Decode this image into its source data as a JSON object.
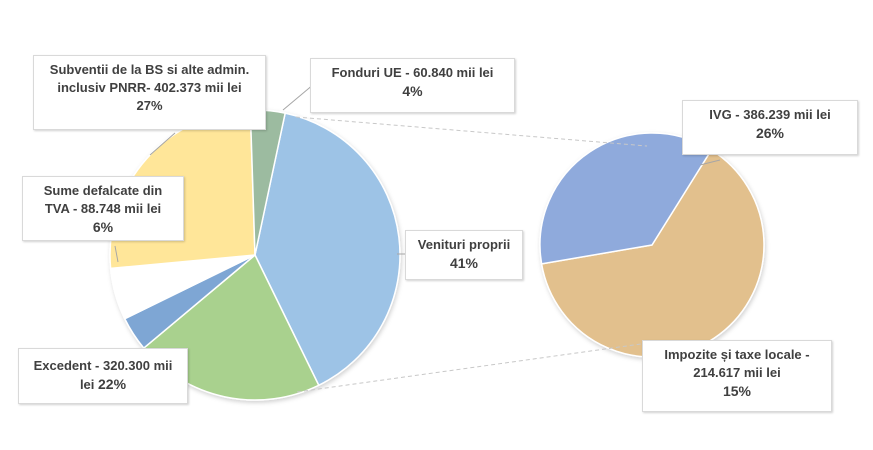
{
  "chart_data": {
    "type": "pie",
    "subtype": "pie-of-pie",
    "main_slices": [
      {
        "label": "Venituri proprii",
        "percent": 41,
        "color": "#9dc3e6"
      },
      {
        "label": "Excedent - 320.300 mii lei",
        "value_mii_lei": 320300,
        "percent": 22,
        "color": "#a9d18e"
      },
      {
        "label": "",
        "percent": 4,
        "color": "#7ea6d4"
      },
      {
        "label": "Sume defalcate din TVA - 88.748 mii lei",
        "value_mii_lei": 88748,
        "percent": 6,
        "color": "#ffffff"
      },
      {
        "label": "Subventii de la BS si alte admin. inclusiv PNRR- 402.373 mii lei",
        "value_mii_lei": 402373,
        "percent": 27,
        "color": "#ffe699"
      },
      {
        "label": "Fonduri UE - 60.840 mii lei",
        "value_mii_lei": 60840,
        "percent": 4,
        "color": "#9cbba0"
      }
    ],
    "secondary_slices": [
      {
        "label": "IVG - 386.239 mii lei",
        "value_mii_lei": 386239,
        "percent": 26,
        "color": "#e2c08d"
      },
      {
        "label": "Impozite și taxe locale - 214.617 mii lei",
        "value_mii_lei": 214617,
        "percent": 15,
        "color": "#8faadc"
      }
    ]
  },
  "labels": {
    "subventii": {
      "line1": "Subventii de la BS si alte admin.",
      "line2": "inclusiv PNRR- 402.373 mii lei",
      "pct": "27%"
    },
    "fonduri": {
      "line1": "Fonduri UE - 60.840 mii lei",
      "pct": "4%"
    },
    "sume": {
      "line1": "Sume defalcate din",
      "line2": "TVA - 88.748 mii lei",
      "pct": "6%"
    },
    "venituri": {
      "line1": "Venituri proprii",
      "pct": "41%"
    },
    "excedent": {
      "line1": "Excedent - 320.300 mii",
      "line2a": "lei ",
      "pct": "22%"
    },
    "ivg": {
      "line1": "IVG - 386.239 mii lei",
      "pct": "26%"
    },
    "impozite": {
      "line1": "Impozite și taxe locale -",
      "line2": "214.617 mii lei",
      "pct": "15%"
    }
  }
}
